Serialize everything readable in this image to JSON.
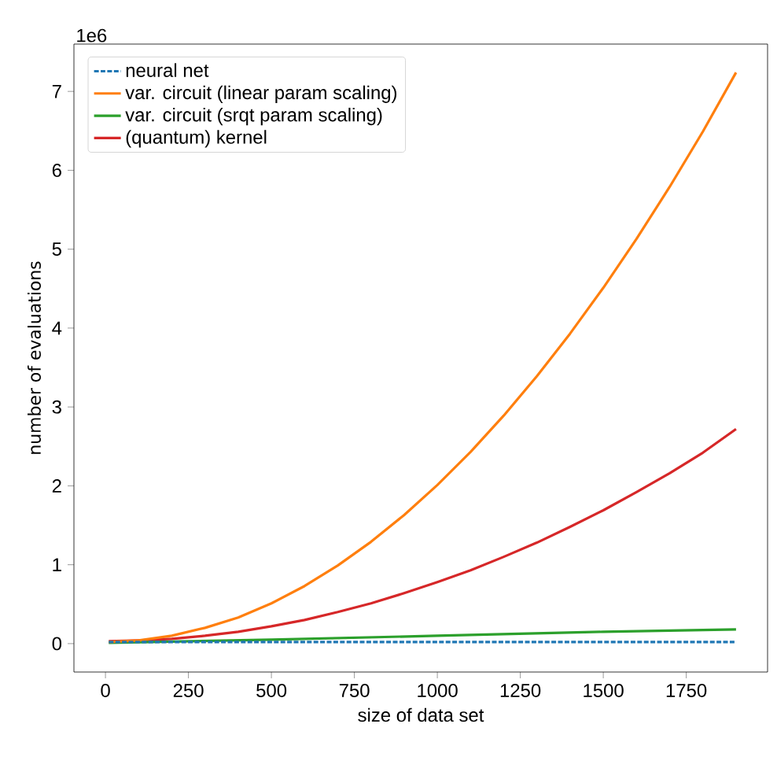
{
  "chart_data": {
    "type": "line",
    "xlabel": "size of data set",
    "ylabel": "number of evaluations",
    "annotations": [
      "1e6"
    ],
    "xlim": [
      -95,
      1995
    ],
    "xticks": [
      0,
      250,
      500,
      750,
      1000,
      1250,
      1500,
      1750
    ],
    "ylim": [
      -0.36,
      7.6
    ],
    "yticks": [
      0,
      1,
      2,
      3,
      4,
      5,
      6,
      7
    ],
    "legend": "top left",
    "grid": false,
    "marker": "none",
    "series": [
      {
        "name": "neural net",
        "color": "#1f77b4",
        "line_style": "dashed",
        "x": [
          10,
          500,
          1000,
          1500,
          1900
        ],
        "values": [
          0.02,
          0.02,
          0.02,
          0.02,
          0.02
        ]
      },
      {
        "name": "var. circuit (linear param scaling)",
        "color": "#ff7f0e",
        "line_style": "solid",
        "x": [
          10,
          100,
          200,
          300,
          400,
          500,
          600,
          700,
          800,
          900,
          1000,
          1100,
          1200,
          1300,
          1400,
          1500,
          1600,
          1700,
          1800,
          1900
        ],
        "values": [
          0.02,
          0.04,
          0.1,
          0.2,
          0.33,
          0.51,
          0.73,
          0.99,
          1.29,
          1.63,
          2.01,
          2.43,
          2.89,
          3.39,
          3.93,
          4.51,
          5.13,
          5.79,
          6.49,
          7.24
        ]
      },
      {
        "name": "var. circuit (srqt param scaling)",
        "color": "#2ca02c",
        "line_style": "solid",
        "x": [
          10,
          500,
          1000,
          1500,
          1900
        ],
        "values": [
          0.01,
          0.05,
          0.1,
          0.15,
          0.18
        ]
      },
      {
        "name": "(quantum) kernel",
        "color": "#d62728",
        "line_style": "solid",
        "x": [
          10,
          100,
          200,
          300,
          400,
          500,
          600,
          700,
          800,
          900,
          1000,
          1100,
          1200,
          1300,
          1400,
          1500,
          1600,
          1700,
          1800,
          1900
        ],
        "values": [
          0.03,
          0.04,
          0.06,
          0.1,
          0.15,
          0.22,
          0.3,
          0.4,
          0.51,
          0.64,
          0.78,
          0.93,
          1.1,
          1.28,
          1.48,
          1.69,
          1.92,
          2.16,
          2.42,
          2.72
        ]
      }
    ]
  }
}
